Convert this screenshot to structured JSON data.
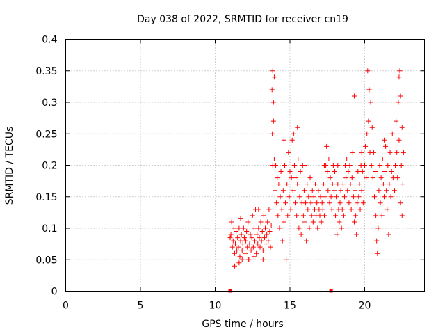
{
  "chart_data": {
    "type": "scatter",
    "title": "Day 038 of 2022, SRMTID for receiver cn19",
    "xlabel": "GPS time / hours",
    "ylabel": "SRMTID / TECUs",
    "xlim": [
      0,
      24
    ],
    "ylim": [
      0,
      0.4
    ],
    "x_ticks": [
      0,
      5,
      10,
      15,
      20
    ],
    "x_tick_labels": [
      "0",
      "5",
      "10",
      "15",
      "20"
    ],
    "y_ticks": [
      0,
      0.05,
      0.1,
      0.15,
      0.2,
      0.25,
      0.3,
      0.35,
      0.4
    ],
    "y_tick_labels": [
      "0",
      "0.05",
      "0.1",
      "0.15",
      "0.2",
      "0.25",
      "0.3",
      "0.35",
      "0.4"
    ],
    "grid": true,
    "marker": "+",
    "color": "#ff0000",
    "zero_markers_x": [
      11.0,
      17.75
    ],
    "series": [
      {
        "name": "SRMTID",
        "points": [
          [
            11.0,
            0.085
          ],
          [
            11.05,
            0.09
          ],
          [
            11.1,
            0.11
          ],
          [
            11.15,
            0.07
          ],
          [
            11.2,
            0.08
          ],
          [
            11.25,
            0.1
          ],
          [
            11.3,
            0.06
          ],
          [
            11.35,
            0.075
          ],
          [
            11.4,
            0.095
          ],
          [
            11.45,
            0.065
          ],
          [
            11.5,
            0.085
          ],
          [
            11.55,
            0.07
          ],
          [
            11.6,
            0.1
          ],
          [
            11.65,
            0.055
          ],
          [
            11.7,
            0.08
          ],
          [
            11.75,
            0.09
          ],
          [
            11.8,
            0.065
          ],
          [
            11.85,
            0.075
          ],
          [
            11.9,
            0.1
          ],
          [
            11.95,
            0.085
          ],
          [
            12.0,
            0.06
          ],
          [
            12.05,
            0.08
          ],
          [
            12.1,
            0.095
          ],
          [
            12.15,
            0.07
          ],
          [
            12.2,
            0.11
          ],
          [
            12.25,
            0.05
          ],
          [
            12.3,
            0.075
          ],
          [
            12.35,
            0.09
          ],
          [
            12.4,
            0.065
          ],
          [
            12.45,
            0.085
          ],
          [
            12.5,
            0.12
          ],
          [
            12.55,
            0.07
          ],
          [
            12.6,
            0.1
          ],
          [
            12.65,
            0.08
          ],
          [
            12.7,
            0.13
          ],
          [
            12.75,
            0.06
          ],
          [
            12.8,
            0.09
          ],
          [
            12.85,
            0.075
          ],
          [
            12.9,
            0.1
          ],
          [
            12.95,
            0.085
          ],
          [
            13.0,
            0.07
          ],
          [
            13.05,
            0.11
          ],
          [
            13.1,
            0.08
          ],
          [
            13.15,
            0.095
          ],
          [
            13.2,
            0.065
          ],
          [
            13.25,
            0.12
          ],
          [
            13.3,
            0.085
          ],
          [
            13.35,
            0.1
          ],
          [
            13.4,
            0.075
          ],
          [
            13.45,
            0.09
          ],
          [
            13.5,
            0.11
          ],
          [
            13.55,
            0.08
          ],
          [
            13.6,
            0.13
          ],
          [
            13.65,
            0.095
          ],
          [
            13.7,
            0.07
          ],
          [
            13.75,
            0.105
          ],
          [
            11.3,
            0.04
          ],
          [
            11.6,
            0.045
          ],
          [
            12.2,
            0.05
          ],
          [
            12.6,
            0.055
          ],
          [
            11.8,
            0.05
          ],
          [
            13.2,
            0.05
          ],
          [
            12.9,
            0.13
          ],
          [
            11.7,
            0.115
          ],
          [
            13.8,
            0.32
          ],
          [
            13.85,
            0.35
          ],
          [
            13.9,
            0.3
          ],
          [
            13.95,
            0.34
          ],
          [
            13.82,
            0.25
          ],
          [
            13.9,
            0.27
          ],
          [
            13.95,
            0.21
          ],
          [
            13.85,
            0.2
          ],
          [
            14.0,
            0.16
          ],
          [
            14.05,
            0.2
          ],
          [
            14.1,
            0.14
          ],
          [
            14.15,
            0.18
          ],
          [
            14.2,
            0.12
          ],
          [
            14.25,
            0.17
          ],
          [
            14.3,
            0.1
          ],
          [
            14.35,
            0.15
          ],
          [
            14.4,
            0.19
          ],
          [
            14.45,
            0.13
          ],
          [
            14.5,
            0.08
          ],
          [
            14.55,
            0.16
          ],
          [
            14.6,
            0.11
          ],
          [
            14.65,
            0.2
          ],
          [
            14.7,
            0.14
          ],
          [
            14.75,
            0.05
          ],
          [
            14.8,
            0.17
          ],
          [
            14.85,
            0.12
          ],
          [
            14.9,
            0.22
          ],
          [
            14.95,
            0.15
          ],
          [
            15.0,
            0.19
          ],
          [
            15.05,
            0.13
          ],
          [
            15.1,
            0.18
          ],
          [
            15.15,
            0.24
          ],
          [
            15.2,
            0.16
          ],
          [
            15.25,
            0.25
          ],
          [
            15.3,
            0.2
          ],
          [
            15.35,
            0.14
          ],
          [
            15.4,
            0.18
          ],
          [
            15.45,
            0.12
          ],
          [
            15.5,
            0.17
          ],
          [
            15.55,
            0.21
          ],
          [
            15.6,
            0.1
          ],
          [
            15.65,
            0.15
          ],
          [
            15.7,
            0.19
          ],
          [
            15.75,
            0.09
          ],
          [
            15.8,
            0.14
          ],
          [
            15.85,
            0.2
          ],
          [
            15.9,
            0.12
          ],
          [
            15.95,
            0.16
          ],
          [
            16.0,
            0.11
          ],
          [
            16.05,
            0.14
          ],
          [
            16.1,
            0.08
          ],
          [
            16.15,
            0.17
          ],
          [
            16.2,
            0.13
          ],
          [
            16.25,
            0.15
          ],
          [
            16.3,
            0.1
          ],
          [
            16.35,
            0.18
          ],
          [
            16.4,
            0.14
          ],
          [
            16.45,
            0.12
          ],
          [
            16.5,
            0.16
          ],
          [
            16.55,
            0.11
          ],
          [
            16.6,
            0.15
          ],
          [
            16.65,
            0.13
          ],
          [
            16.7,
            0.17
          ],
          [
            16.75,
            0.12
          ],
          [
            16.8,
            0.14
          ],
          [
            16.85,
            0.1
          ],
          [
            16.9,
            0.16
          ],
          [
            16.95,
            0.13
          ],
          [
            17.0,
            0.12
          ],
          [
            17.05,
            0.15
          ],
          [
            17.1,
            0.11
          ],
          [
            17.15,
            0.14
          ],
          [
            17.2,
            0.13
          ],
          [
            17.25,
            0.17
          ],
          [
            17.3,
            0.12
          ],
          [
            17.35,
            0.15
          ],
          [
            17.4,
            0.2
          ],
          [
            17.45,
            0.23
          ],
          [
            17.5,
            0.19
          ],
          [
            17.55,
            0.16
          ],
          [
            17.6,
            0.21
          ],
          [
            17.65,
            0.14
          ],
          [
            17.7,
            0.18
          ],
          [
            17.75,
            0.15
          ],
          [
            17.8,
            0.13
          ],
          [
            17.85,
            0.17
          ],
          [
            17.9,
            0.2
          ],
          [
            17.95,
            0.16
          ],
          [
            18.0,
            0.19
          ],
          [
            18.05,
            0.12
          ],
          [
            18.1,
            0.15
          ],
          [
            18.15,
            0.09
          ],
          [
            18.2,
            0.17
          ],
          [
            18.25,
            0.13
          ],
          [
            18.3,
            0.11
          ],
          [
            18.35,
            0.14
          ],
          [
            18.4,
            0.16
          ],
          [
            18.45,
            0.1
          ],
          [
            18.5,
            0.13
          ],
          [
            18.55,
            0.17
          ],
          [
            18.6,
            0.12
          ],
          [
            18.65,
            0.15
          ],
          [
            18.7,
            0.2
          ],
          [
            18.75,
            0.18
          ],
          [
            18.8,
            0.21
          ],
          [
            18.85,
            0.16
          ],
          [
            18.9,
            0.19
          ],
          [
            18.95,
            0.14
          ],
          [
            19.0,
            0.2
          ],
          [
            19.05,
            0.17
          ],
          [
            19.1,
            0.13
          ],
          [
            19.15,
            0.18
          ],
          [
            19.2,
            0.22
          ],
          [
            19.25,
            0.15
          ],
          [
            19.3,
            0.11
          ],
          [
            19.35,
            0.16
          ],
          [
            19.4,
            0.12
          ],
          [
            19.45,
            0.09
          ],
          [
            19.5,
            0.14
          ],
          [
            19.55,
            0.19
          ],
          [
            19.6,
            0.15
          ],
          [
            19.65,
            0.17
          ],
          [
            19.7,
            0.13
          ],
          [
            19.75,
            0.2
          ],
          [
            19.8,
            0.16
          ],
          [
            19.85,
            0.19
          ],
          [
            19.9,
            0.14
          ],
          [
            19.95,
            0.21
          ],
          [
            20.0,
            0.2
          ],
          [
            20.05,
            0.23
          ],
          [
            20.1,
            0.18
          ],
          [
            20.15,
            0.25
          ],
          [
            20.2,
            0.35
          ],
          [
            20.25,
            0.27
          ],
          [
            20.3,
            0.32
          ],
          [
            20.35,
            0.22
          ],
          [
            20.4,
            0.3
          ],
          [
            20.45,
            0.2
          ],
          [
            20.5,
            0.26
          ],
          [
            20.55,
            0.18
          ],
          [
            20.6,
            0.22
          ],
          [
            20.65,
            0.15
          ],
          [
            20.7,
            0.19
          ],
          [
            20.75,
            0.12
          ],
          [
            20.8,
            0.08
          ],
          [
            20.85,
            0.06
          ],
          [
            20.9,
            0.1
          ],
          [
            20.95,
            0.16
          ],
          [
            21.0,
            0.2
          ],
          [
            21.05,
            0.14
          ],
          [
            21.1,
            0.18
          ],
          [
            21.15,
            0.12
          ],
          [
            21.2,
            0.21
          ],
          [
            21.25,
            0.17
          ],
          [
            21.3,
            0.15
          ],
          [
            21.35,
            0.19
          ],
          [
            21.4,
            0.23
          ],
          [
            21.45,
            0.16
          ],
          [
            21.5,
            0.13
          ],
          [
            21.55,
            0.2
          ],
          [
            21.6,
            0.09
          ],
          [
            21.65,
            0.17
          ],
          [
            21.7,
            0.22
          ],
          [
            21.75,
            0.15
          ],
          [
            21.8,
            0.19
          ],
          [
            21.85,
            0.25
          ],
          [
            21.9,
            0.18
          ],
          [
            21.95,
            0.21
          ],
          [
            22.0,
            0.16
          ],
          [
            22.05,
            0.2
          ],
          [
            22.1,
            0.27
          ],
          [
            22.15,
            0.22
          ],
          [
            22.2,
            0.18
          ],
          [
            22.25,
            0.3
          ],
          [
            22.3,
            0.24
          ],
          [
            22.35,
            0.35
          ],
          [
            22.4,
            0.31
          ],
          [
            22.45,
            0.2
          ],
          [
            22.5,
            0.26
          ],
          [
            22.55,
            0.17
          ],
          [
            22.6,
            0.22
          ],
          [
            22.4,
            0.14
          ],
          [
            22.5,
            0.12
          ],
          [
            22.3,
            0.34
          ],
          [
            19.3,
            0.31
          ],
          [
            15.5,
            0.26
          ],
          [
            17.3,
            0.2
          ],
          [
            16.0,
            0.2
          ],
          [
            14.6,
            0.24
          ],
          [
            18.2,
            0.2
          ],
          [
            19.8,
            0.22
          ],
          [
            21.3,
            0.24
          ]
        ]
      }
    ]
  }
}
